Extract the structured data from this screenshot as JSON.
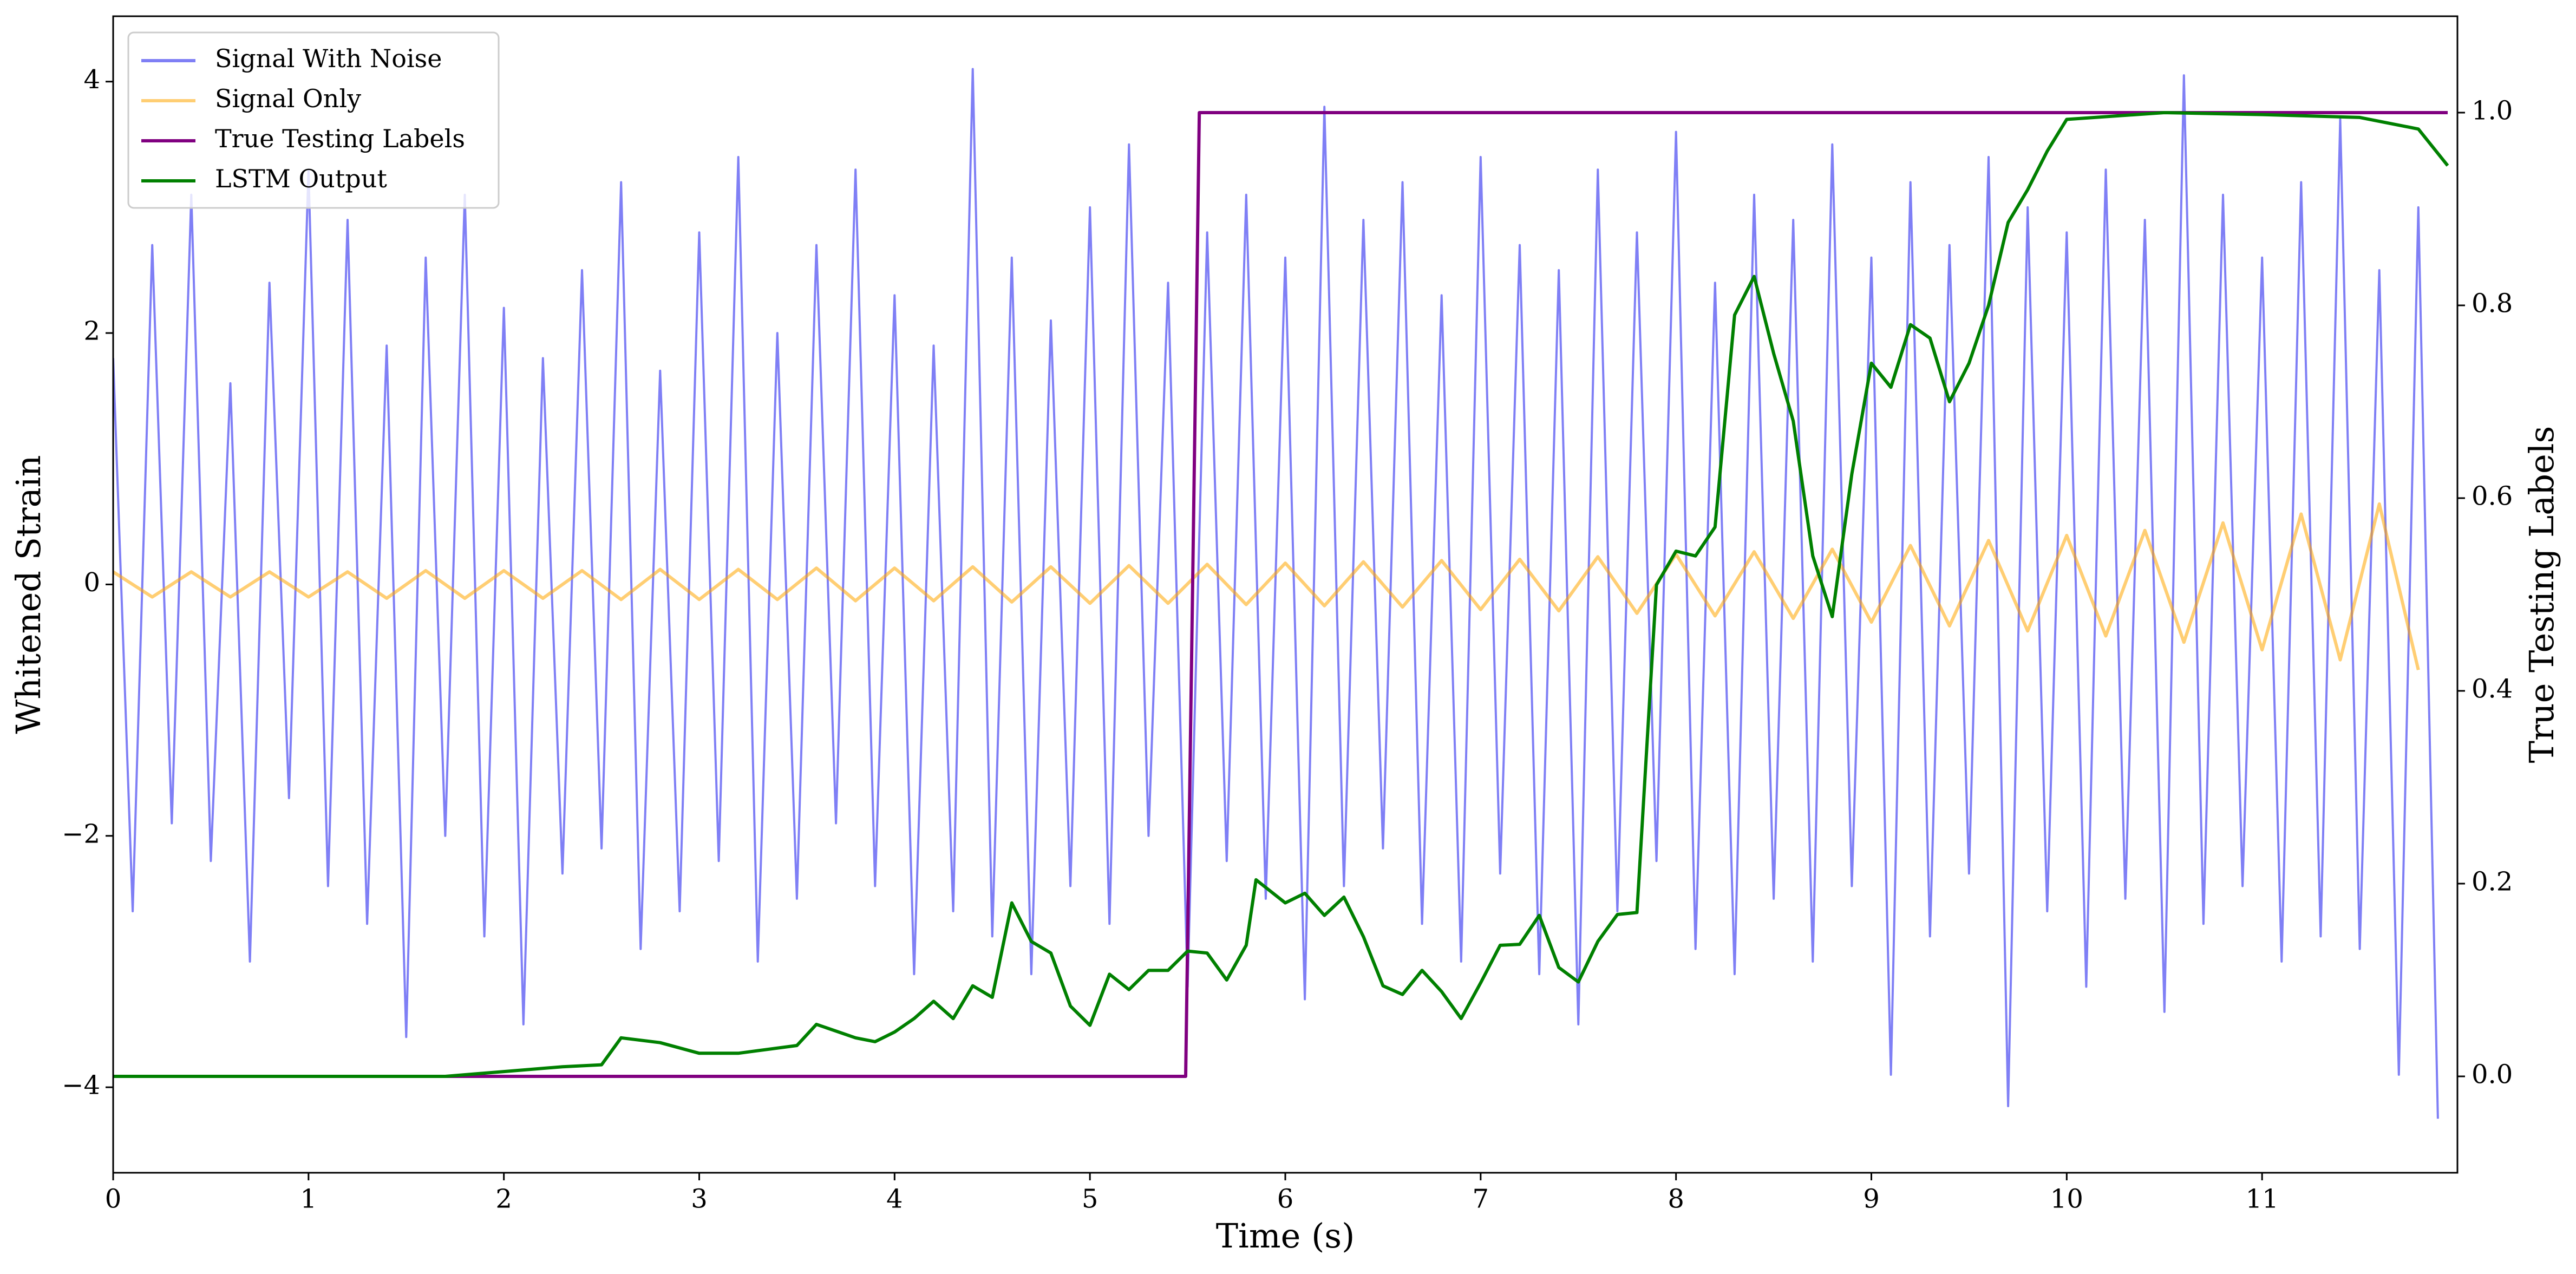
{
  "chart_data": {
    "type": "line",
    "xlabel": "Time (s)",
    "ylabel": "Whitened Strain",
    "y2label": "True Testing Labels",
    "xlim": [
      0,
      12
    ],
    "ylim": [
      -4.68,
      4.52
    ],
    "y2lim": [
      -0.1,
      1.1
    ],
    "xticks": [
      0,
      1,
      2,
      3,
      4,
      5,
      6,
      7,
      8,
      9,
      10,
      11
    ],
    "yticks": [
      {
        "value": -4,
        "label": "−4"
      },
      {
        "value": -2,
        "label": "−2"
      },
      0,
      2,
      4
    ],
    "y2ticks": [
      {
        "value": 0,
        "label": "0.0"
      },
      0.2,
      0.4,
      0.6,
      0.8,
      {
        "value": 1,
        "label": "1.0"
      }
    ],
    "legend": "upper left",
    "grid": false,
    "series": [
      {
        "name": "Signal With Noise",
        "color": "#7f7ff5",
        "x": [
          0,
          0.1,
          0.2,
          0.3,
          0.4,
          0.5,
          0.6,
          0.7,
          0.8,
          0.9,
          1,
          1.1,
          1.2,
          1.3,
          1.4,
          1.5,
          1.6,
          1.7,
          1.8,
          1.9,
          2,
          2.1,
          2.2,
          2.3,
          2.4,
          2.5,
          2.6,
          2.7,
          2.8,
          2.9,
          3,
          3.1,
          3.2,
          3.3,
          3.4,
          3.5,
          3.6,
          3.7,
          3.8,
          3.9,
          4,
          4.1,
          4.2,
          4.3,
          4.4,
          4.5,
          4.6,
          4.7,
          4.8,
          4.9,
          5,
          5.1,
          5.2,
          5.3,
          5.4,
          5.5,
          5.6,
          5.7,
          5.8,
          5.9,
          6,
          6.1,
          6.2,
          6.3,
          6.4,
          6.5,
          6.6,
          6.7,
          6.8,
          6.9,
          7,
          7.1,
          7.2,
          7.3,
          7.4,
          7.5,
          7.6,
          7.7,
          7.8,
          7.9,
          8,
          8.1,
          8.2,
          8.3,
          8.4,
          8.5,
          8.6,
          8.7,
          8.8,
          8.9,
          9,
          9.1,
          9.2,
          9.3,
          9.4,
          9.5,
          9.6,
          9.7,
          9.8,
          9.9,
          10,
          10.1,
          10.2,
          10.3,
          10.4,
          10.5,
          10.6,
          10.7,
          10.8,
          10.9,
          11,
          11.1,
          11.2,
          11.3,
          11.4,
          11.5,
          11.6,
          11.7,
          11.8,
          11.9
        ],
        "values": [
          1.8,
          -2.6,
          2.7,
          -1.9,
          3.1,
          -2.2,
          1.6,
          -3.0,
          2.4,
          -1.7,
          3.3,
          -2.4,
          2.9,
          -2.7,
          1.9,
          -3.6,
          2.6,
          -2.0,
          3.1,
          -2.8,
          2.2,
          -3.5,
          1.8,
          -2.3,
          2.5,
          -2.1,
          3.2,
          -2.9,
          1.7,
          -2.6,
          2.8,
          -2.2,
          3.4,
          -3.0,
          2.0,
          -2.5,
          2.7,
          -1.9,
          3.3,
          -2.4,
          2.3,
          -3.1,
          1.9,
          -2.6,
          4.1,
          -2.8,
          2.6,
          -3.1,
          2.1,
          -2.4,
          3.0,
          -2.7,
          3.5,
          -2.0,
          2.4,
          -3.2,
          2.8,
          -2.2,
          3.1,
          -2.5,
          2.6,
          -3.3,
          3.8,
          -2.4,
          2.9,
          -2.1,
          3.2,
          -2.7,
          2.3,
          -3.0,
          3.4,
          -2.3,
          2.7,
          -3.1,
          2.5,
          -3.5,
          3.3,
          -2.6,
          2.8,
          -2.2,
          3.6,
          -2.9,
          2.4,
          -3.1,
          3.1,
          -2.5,
          2.9,
          -3.0,
          3.5,
          -2.4,
          2.6,
          -3.9,
          3.2,
          -2.8,
          2.7,
          -2.3,
          3.4,
          -4.15,
          3.0,
          -2.6,
          2.8,
          -3.2,
          3.3,
          -2.5,
          2.9,
          -3.4,
          4.05,
          -2.7,
          3.1,
          -2.4,
          2.6,
          -3.0,
          3.2,
          -2.8,
          3.7,
          -2.9,
          2.5,
          -3.9,
          3.0,
          -4.25
        ]
      },
      {
        "name": "Signal Only",
        "color": "#ffa500",
        "x": [
          0,
          0.2,
          0.4,
          0.6,
          0.8,
          1,
          1.2,
          1.4,
          1.6,
          1.8,
          2,
          2.2,
          2.4,
          2.6,
          2.8,
          3,
          3.2,
          3.4,
          3.6,
          3.8,
          4,
          4.2,
          4.4,
          4.6,
          4.8,
          5,
          5.2,
          5.4,
          5.6,
          5.8,
          6,
          6.2,
          6.4,
          6.6,
          6.8,
          7,
          7.2,
          7.4,
          7.6,
          7.8,
          8,
          8.2,
          8.4,
          8.6,
          8.8,
          9,
          9.2,
          9.4,
          9.6,
          9.8,
          10,
          10.2,
          10.4,
          10.6,
          10.8,
          11,
          11.2,
          11.4,
          11.6,
          11.8
        ],
        "values": [
          0.1,
          -0.1,
          0.1,
          -0.1,
          0.1,
          -0.1,
          0.1,
          -0.11,
          0.11,
          -0.11,
          0.11,
          -0.11,
          0.11,
          -0.12,
          0.12,
          -0.12,
          0.12,
          -0.12,
          0.13,
          -0.13,
          0.13,
          -0.13,
          0.14,
          -0.14,
          0.14,
          -0.15,
          0.15,
          -0.15,
          0.16,
          -0.16,
          0.17,
          -0.17,
          0.18,
          -0.18,
          0.19,
          -0.2,
          0.2,
          -0.21,
          0.22,
          -0.23,
          0.24,
          -0.25,
          0.26,
          -0.27,
          0.28,
          -0.3,
          0.31,
          -0.33,
          0.35,
          -0.37,
          0.39,
          -0.41,
          0.43,
          -0.46,
          0.49,
          -0.52,
          0.56,
          -0.6,
          0.64,
          -0.68
        ]
      },
      {
        "name": "True Testing Labels",
        "color": "#800080",
        "axis": "y2",
        "x": [
          0,
          5.49,
          5.56,
          11.95
        ],
        "values": [
          0,
          0,
          1,
          1
        ]
      },
      {
        "name": "LSTM Output",
        "color": "#008000",
        "axis": "y2",
        "x": [
          0,
          1.7,
          2.0,
          2.3,
          2.5,
          2.6,
          2.8,
          3.0,
          3.2,
          3.5,
          3.6,
          3.8,
          3.9,
          4.0,
          4.1,
          4.2,
          4.3,
          4.4,
          4.5,
          4.6,
          4.7,
          4.8,
          4.9,
          5.0,
          5.1,
          5.2,
          5.3,
          5.4,
          5.5,
          5.6,
          5.7,
          5.8,
          5.85,
          6.0,
          6.1,
          6.2,
          6.3,
          6.4,
          6.5,
          6.6,
          6.7,
          6.8,
          6.9,
          7.0,
          7.1,
          7.2,
          7.3,
          7.4,
          7.5,
          7.6,
          7.7,
          7.8,
          7.9,
          8.0,
          8.1,
          8.2,
          8.3,
          8.4,
          8.5,
          8.6,
          8.7,
          8.8,
          8.9,
          9.0,
          9.1,
          9.2,
          9.3,
          9.4,
          9.5,
          9.6,
          9.7,
          9.8,
          9.9,
          10.0,
          10.5,
          11.0,
          11.5,
          11.8,
          11.95
        ],
        "values": [
          0,
          0,
          0.005,
          0.01,
          0.012,
          0.04,
          0.035,
          0.024,
          0.024,
          0.032,
          0.054,
          0.04,
          0.036,
          0.046,
          0.06,
          0.078,
          0.06,
          0.094,
          0.082,
          0.18,
          0.14,
          0.128,
          0.073,
          0.053,
          0.106,
          0.09,
          0.11,
          0.11,
          0.13,
          0.128,
          0.1,
          0.136,
          0.204,
          0.18,
          0.19,
          0.167,
          0.186,
          0.145,
          0.094,
          0.085,
          0.11,
          0.088,
          0.06,
          0.097,
          0.136,
          0.137,
          0.167,
          0.113,
          0.098,
          0.14,
          0.168,
          0.17,
          0.51,
          0.545,
          0.54,
          0.57,
          0.79,
          0.83,
          0.75,
          0.68,
          0.54,
          0.477,
          0.625,
          0.74,
          0.715,
          0.78,
          0.766,
          0.7,
          0.74,
          0.8,
          0.886,
          0.92,
          0.96,
          0.993,
          1.0,
          0.998,
          0.995,
          0.983,
          0.945
        ]
      }
    ]
  }
}
